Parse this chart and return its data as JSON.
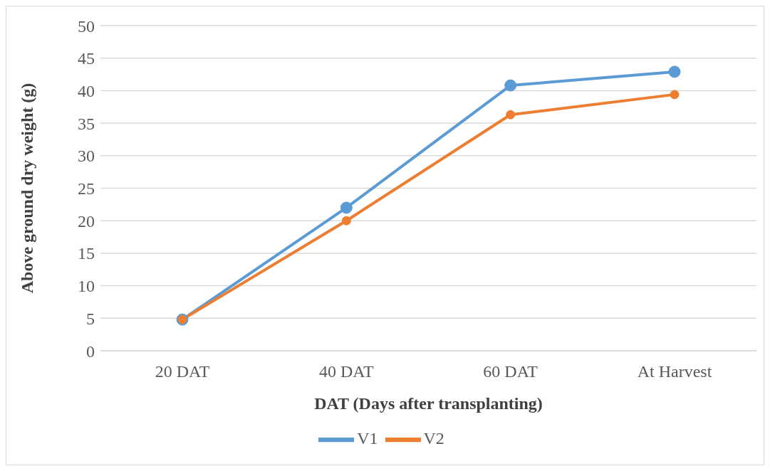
{
  "chart_data": {
    "type": "line",
    "xlabel": "DAT (Days after transplanting)",
    "ylabel": "Above ground dry weight (g)",
    "categories": [
      "20 DAT",
      "40 DAT",
      "60 DAT",
      "At Harvest"
    ],
    "series": [
      {
        "name": "V1",
        "color": "#5b9bd5",
        "values": [
          4.8,
          22.0,
          40.8,
          42.9
        ]
      },
      {
        "name": "V2",
        "color": "#ed7d31",
        "values": [
          4.8,
          20.0,
          36.3,
          39.4
        ]
      }
    ],
    "ylim": [
      0,
      50
    ],
    "yticks": [
      0,
      5,
      10,
      15,
      20,
      25,
      30,
      35,
      40,
      45,
      50
    ],
    "grid": "y",
    "legend": "bottom",
    "marker": "circle",
    "line_style": "solid"
  }
}
